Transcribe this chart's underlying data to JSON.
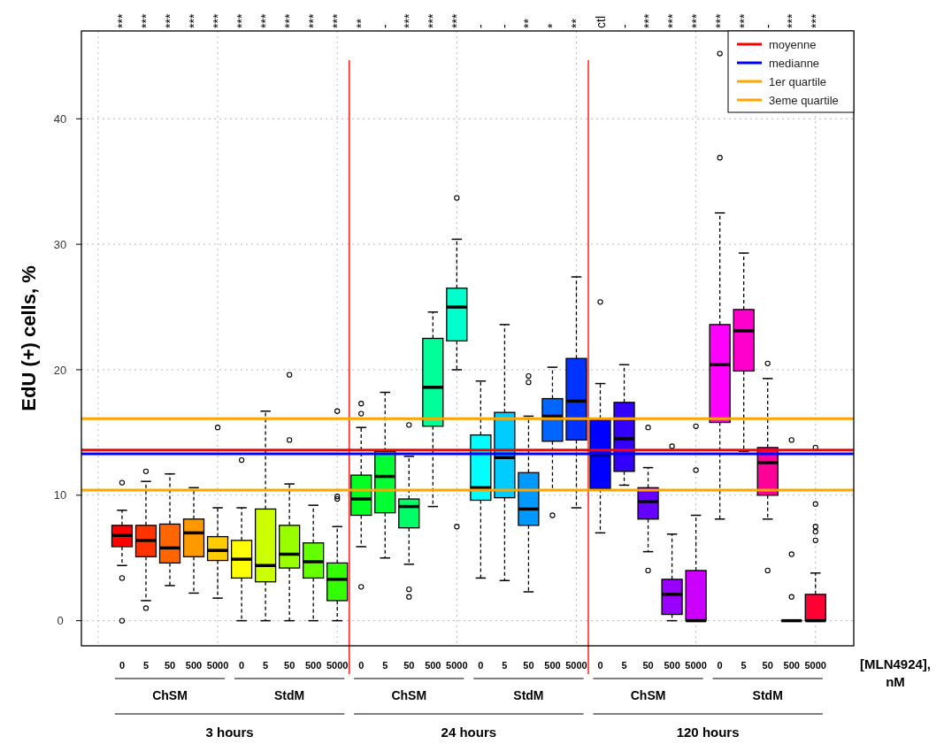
{
  "chart_data": {
    "type": "box",
    "ylabel": "EdU (+) cells, %",
    "xlabel": "[MLN4924], nM",
    "categories": [
      "0",
      "5",
      "50",
      "500",
      "5000",
      "0",
      "5",
      "50",
      "500",
      "5000",
      "0",
      "5",
      "50",
      "500",
      "5000",
      "0",
      "5",
      "50",
      "500",
      "5000",
      "0",
      "5",
      "50",
      "500",
      "5000",
      "0",
      "5",
      "50",
      "500",
      "5000"
    ],
    "colors": [
      "#ff0000",
      "#ff3300",
      "#ff6600",
      "#ff9900",
      "#ffcc00",
      "#ffff00",
      "#ccff00",
      "#99ff00",
      "#66ff00",
      "#33ff00",
      "#00ff22",
      "#00ff33",
      "#00ff66",
      "#00ff99",
      "#00ffcc",
      "#00ffff",
      "#00ccff",
      "#0099ff",
      "#0066ff",
      "#0033ff",
      "#0000ff",
      "#3300ff",
      "#6600ff",
      "#9900ff",
      "#cc00ff",
      "#ff00ff",
      "#ff00cc",
      "#ff0099",
      "#ff0066",
      "#ff0033"
    ],
    "boxes": [
      {
        "low": 4.4,
        "q1": 5.9,
        "median": 6.8,
        "q3": 7.6,
        "high": 8.8,
        "outliers": [
          11.0,
          3.4,
          0
        ]
      },
      {
        "low": 1.6,
        "q1": 5.1,
        "median": 6.4,
        "q3": 7.6,
        "high": 11.1,
        "outliers": [
          11.9,
          1.0
        ]
      },
      {
        "low": 2.8,
        "q1": 4.6,
        "median": 5.8,
        "q3": 7.7,
        "high": 11.7
      },
      {
        "low": 2.2,
        "q1": 5.1,
        "median": 7.0,
        "q3": 8.1,
        "high": 10.6
      },
      {
        "low": 1.8,
        "q1": 4.8,
        "median": 5.6,
        "q3": 6.7,
        "high": 9.0,
        "outliers": [
          15.4
        ]
      },
      {
        "low": 0,
        "q1": 3.4,
        "median": 4.9,
        "q3": 6.4,
        "high": 9.0,
        "outliers": [
          12.8
        ]
      },
      {
        "low": 0,
        "q1": 3.1,
        "median": 4.4,
        "q3": 8.9,
        "high": 16.7
      },
      {
        "low": 0,
        "q1": 4.2,
        "median": 5.3,
        "q3": 7.6,
        "high": 10.9,
        "outliers": [
          19.6,
          14.4
        ]
      },
      {
        "low": 0,
        "q1": 3.4,
        "median": 4.7,
        "q3": 6.2,
        "high": 9.2
      },
      {
        "low": 0,
        "q1": 1.6,
        "median": 3.3,
        "q3": 4.6,
        "high": 7.5,
        "outliers": [
          16.7,
          9.9,
          9.7
        ]
      },
      {
        "low": 5.9,
        "q1": 8.4,
        "median": 9.7,
        "q3": 11.6,
        "high": 15.4,
        "outliers": [
          17.3,
          16.5,
          2.7
        ]
      },
      {
        "low": 5.0,
        "q1": 8.6,
        "median": 11.5,
        "q3": 13.5,
        "high": 18.2
      },
      {
        "low": 4.5,
        "q1": 7.4,
        "median": 9.1,
        "q3": 9.7,
        "high": 13.1,
        "outliers": [
          15.6,
          2.5,
          1.9
        ]
      },
      {
        "low": 9.1,
        "q1": 15.5,
        "median": 18.6,
        "q3": 22.5,
        "high": 24.6
      },
      {
        "low": 20.0,
        "q1": 22.3,
        "median": 25.0,
        "q3": 26.5,
        "high": 30.4,
        "outliers": [
          33.7,
          7.5
        ]
      },
      {
        "low": 3.4,
        "q1": 9.6,
        "median": 10.6,
        "q3": 14.8,
        "high": 19.1
      },
      {
        "low": 3.2,
        "q1": 9.8,
        "median": 13.0,
        "q3": 16.6,
        "high": 23.6
      },
      {
        "low": 2.3,
        "q1": 7.6,
        "median": 8.9,
        "q3": 11.8,
        "high": 16.3,
        "outliers": [
          19.5,
          19.0
        ]
      },
      {
        "low": 10.4,
        "q1": 14.3,
        "median": 16.3,
        "q3": 17.7,
        "high": 20.2,
        "outliers": [
          8.4
        ]
      },
      {
        "low": 9.0,
        "q1": 14.4,
        "median": 17.5,
        "q3": 20.9,
        "high": 27.4
      },
      {
        "low": 7.0,
        "q1": 10.5,
        "median": 13.2,
        "q3": 16.1,
        "high": 18.9,
        "outliers": [
          25.4
        ]
      },
      {
        "low": 10.8,
        "q1": 11.9,
        "median": 14.5,
        "q3": 17.4,
        "high": 20.4
      },
      {
        "low": 5.5,
        "q1": 8.1,
        "median": 9.5,
        "q3": 10.6,
        "high": 12.2,
        "outliers": [
          15.4,
          4.0
        ]
      },
      {
        "low": 0,
        "q1": 0.5,
        "median": 2.1,
        "q3": 3.3,
        "high": 6.9,
        "outliers": [
          13.9
        ]
      },
      {
        "low": 0,
        "q1": 0,
        "median": 0,
        "q3": 4.0,
        "high": 8.4,
        "outliers": [
          15.5,
          12.0
        ]
      },
      {
        "low": 8.1,
        "q1": 15.8,
        "median": 20.4,
        "q3": 23.6,
        "high": 32.5,
        "outliers": [
          45.2,
          36.9
        ]
      },
      {
        "low": 13.5,
        "q1": 19.9,
        "median": 23.1,
        "q3": 24.8,
        "high": 29.3
      },
      {
        "low": 8.1,
        "q1": 10.0,
        "median": 12.6,
        "q3": 13.8,
        "high": 19.3,
        "outliers": [
          20.5,
          4.0
        ]
      },
      {
        "low": 0,
        "q1": 0,
        "median": 0,
        "q3": 0,
        "high": 0,
        "outliers": [
          14.4,
          5.3,
          1.9
        ]
      },
      {
        "low": 0,
        "q1": 0,
        "median": 0,
        "q3": 2.1,
        "high": 3.8,
        "outliers": [
          13.8,
          9.3,
          7.5,
          7.1,
          6.4
        ]
      }
    ],
    "ylim": [
      -2,
      47
    ],
    "yticks": [
      0,
      10,
      20,
      30,
      40
    ],
    "grid": true,
    "legend": "top right",
    "ref_lines": [
      {
        "axis": "y",
        "value": 13.6,
        "label": "moyenne",
        "color": "#ff0000"
      },
      {
        "axis": "y",
        "value": 13.3,
        "label": "medianne",
        "color": "#0000ff"
      },
      {
        "axis": "y",
        "value": 10.4,
        "label": "1er quartile",
        "color": "#ffa500"
      },
      {
        "axis": "y",
        "value": 16.1,
        "label": "3eme quartile",
        "color": "#ffa500"
      }
    ],
    "annotations": [
      "***",
      "***",
      "***",
      "***",
      "***",
      "***",
      "***",
      "***",
      "***",
      "***",
      "**",
      "-",
      "***",
      "***",
      "***",
      "-",
      "-",
      "**",
      "*",
      "**",
      "ctl",
      "-",
      "***",
      "***",
      "***",
      "***",
      "***",
      "-",
      "***",
      "***",
      "ChSM",
      "StdM",
      "ChSM",
      "StdM",
      "ChSM",
      "StdM",
      "3 hours",
      "24 hours",
      "120 hours"
    ]
  }
}
